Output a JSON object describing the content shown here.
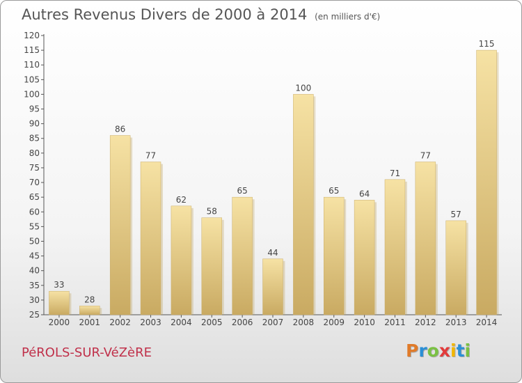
{
  "header": {
    "title": "Autres Revenus Divers de 2000 à 2014",
    "subtitle": "(en milliers d'€)"
  },
  "footer": {
    "commune": "PéROLS-SUR-VéZèRE",
    "logo": [
      "P",
      "r",
      "o",
      "x",
      "i",
      "t",
      "i"
    ],
    "logo_colors": [
      "#e07b2a",
      "#2a8fd6",
      "#7ac143",
      "#e23a3a",
      "#f2b600",
      "#2a8fd6",
      "#7ac143"
    ]
  },
  "chart_data": {
    "type": "bar",
    "title": "Autres Revenus Divers de 2000 à 2014",
    "categories": [
      "2000",
      "2001",
      "2002",
      "2003",
      "2004",
      "2005",
      "2006",
      "2007",
      "2008",
      "2009",
      "2010",
      "2011",
      "2012",
      "2013",
      "2014"
    ],
    "values": [
      33,
      28,
      86,
      77,
      62,
      58,
      65,
      44,
      100,
      65,
      64,
      71,
      77,
      57,
      115
    ],
    "ylim": [
      25,
      120
    ],
    "ytick_step": 5,
    "grid": false,
    "bar_color": "#e8cf86"
  }
}
